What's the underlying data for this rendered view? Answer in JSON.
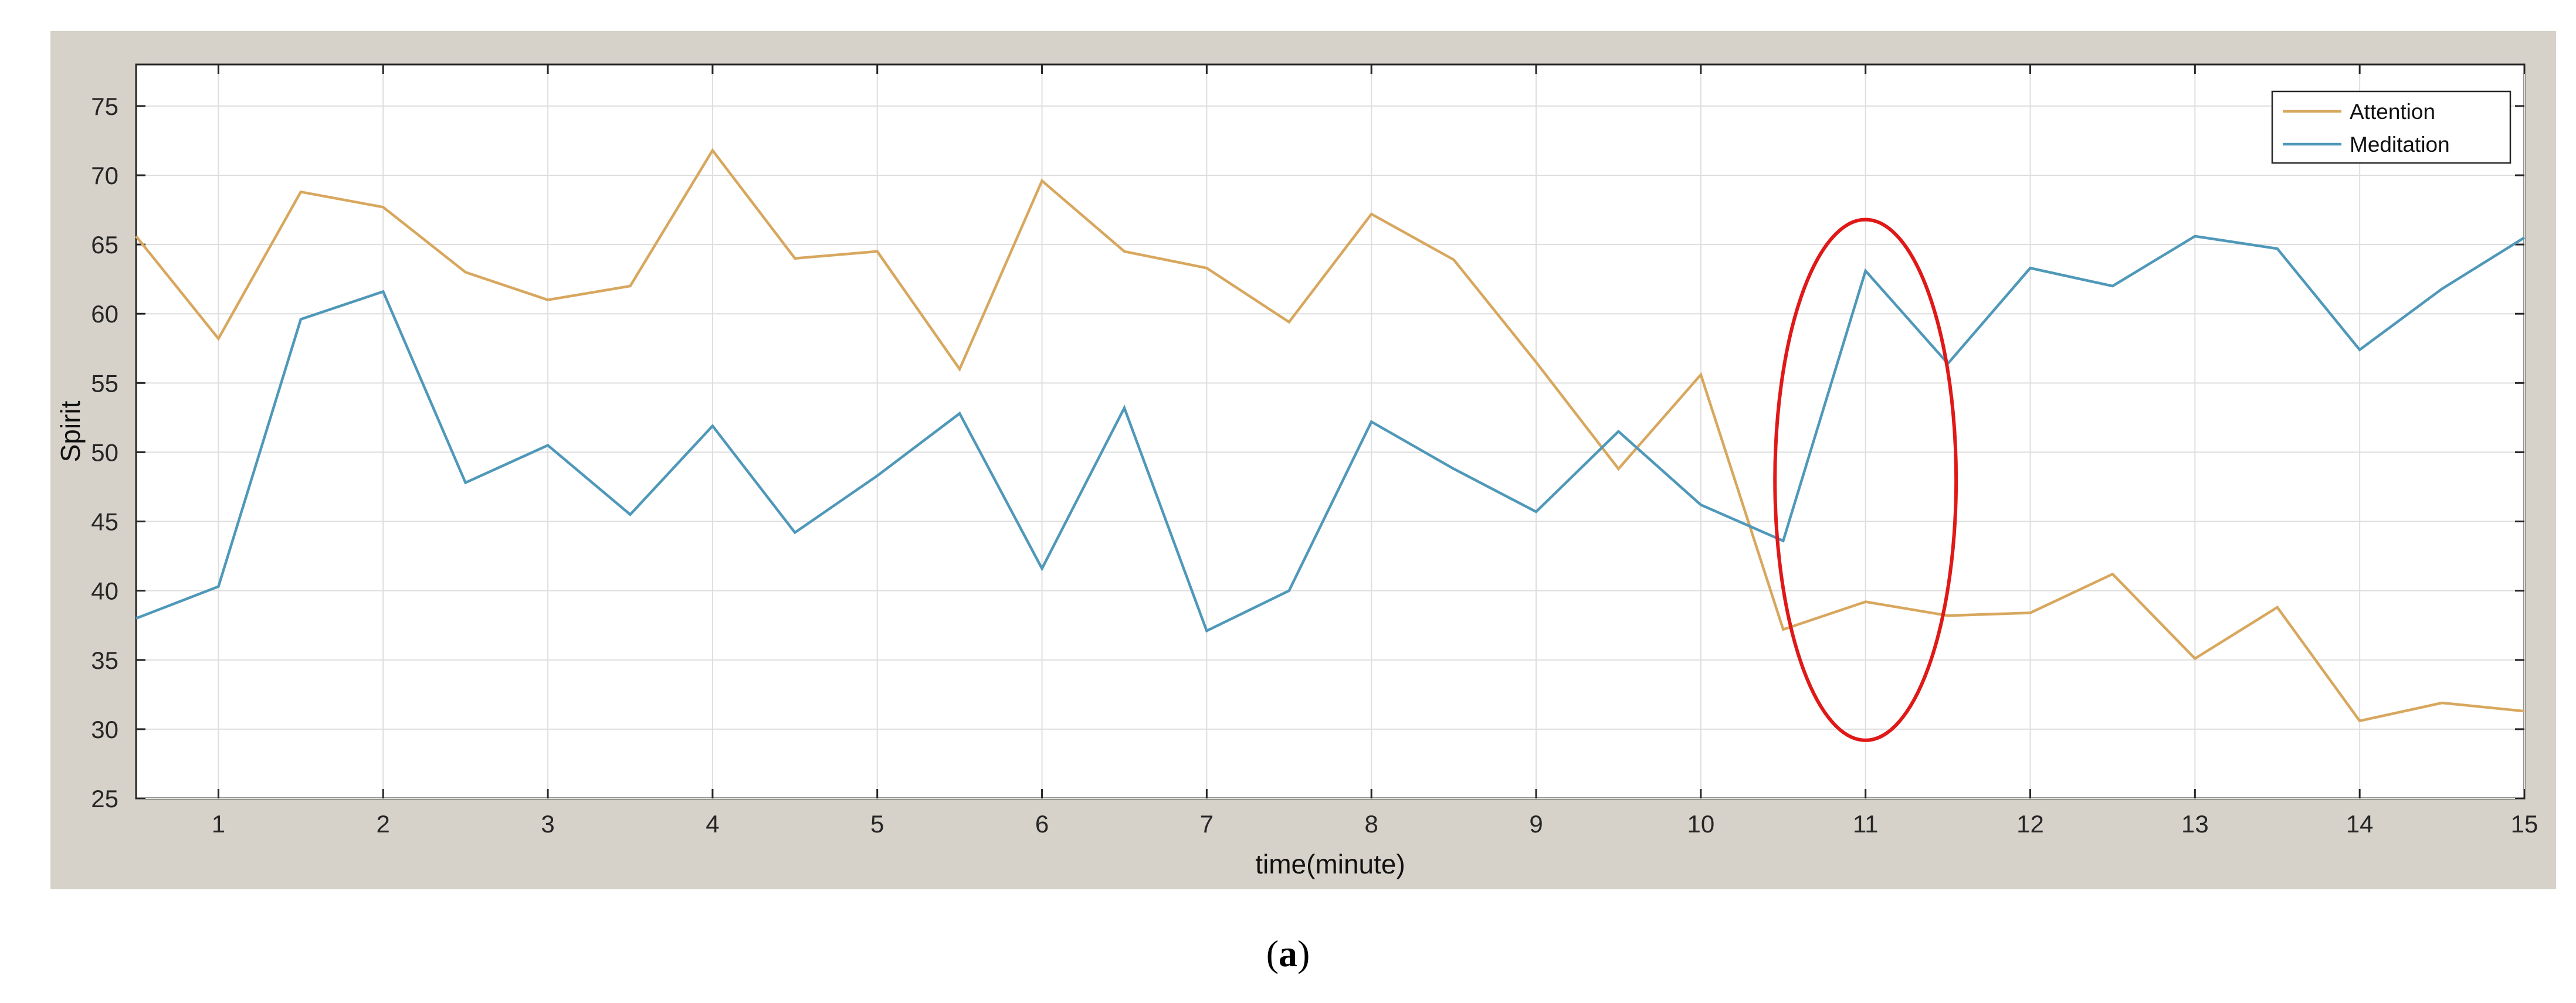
{
  "chart_data": {
    "type": "line",
    "xlabel": "time(minute)",
    "ylabel": "Spirit",
    "xlim": [
      0.5,
      15
    ],
    "ylim": [
      25,
      78
    ],
    "xticks": [
      1,
      2,
      3,
      4,
      5,
      6,
      7,
      8,
      9,
      10,
      11,
      12,
      13,
      14,
      15
    ],
    "yticks": [
      25,
      30,
      35,
      40,
      45,
      50,
      55,
      60,
      65,
      70,
      75
    ],
    "grid": true,
    "legend_position": "top-right",
    "x": [
      0.5,
      1,
      1.5,
      2,
      2.5,
      3,
      3.5,
      4,
      4.5,
      5,
      5.5,
      6,
      6.5,
      7,
      7.5,
      8,
      8.5,
      9,
      9.5,
      10,
      10.5,
      11,
      11.5,
      12,
      12.5,
      13,
      13.5,
      14,
      14.5,
      15
    ],
    "series": [
      {
        "name": "Attention",
        "color": "#d8a75e",
        "values": [
          65.6,
          58.2,
          68.8,
          67.7,
          63.0,
          61.0,
          62.0,
          71.8,
          64.0,
          64.5,
          56.0,
          69.6,
          64.5,
          63.3,
          59.4,
          67.2,
          63.9,
          56.5,
          48.8,
          55.6,
          37.2,
          39.2,
          38.2,
          38.4,
          41.2,
          35.1,
          38.8,
          30.6,
          31.9,
          31.3
        ]
      },
      {
        "name": "Meditation",
        "color": "#4f98b9",
        "values": [
          38.0,
          40.3,
          59.6,
          61.6,
          47.8,
          50.5,
          45.5,
          51.9,
          44.2,
          48.3,
          52.8,
          41.6,
          53.2,
          37.1,
          40.0,
          52.2,
          48.8,
          45.7,
          51.5,
          46.2,
          43.6,
          63.1,
          56.4,
          63.3,
          62.0,
          65.6,
          64.7,
          57.4,
          61.8,
          65.5
        ]
      }
    ],
    "annotations": [
      {
        "type": "ellipse",
        "color": "#e01818",
        "center": [
          11,
          48
        ],
        "rx_data": 0.55,
        "ry_data": 18.8
      }
    ]
  },
  "caption": {
    "letter": "a"
  }
}
